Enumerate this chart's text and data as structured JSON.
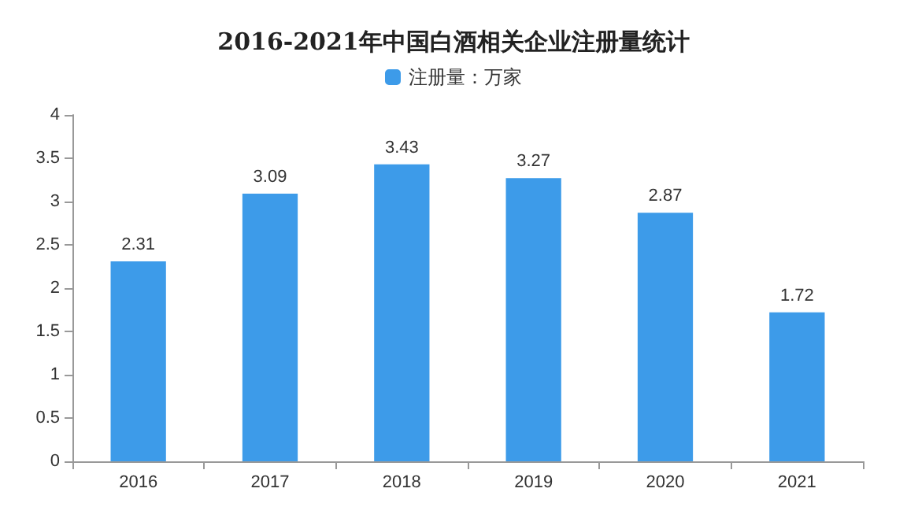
{
  "chart_data": {
    "type": "bar",
    "title": "2016-2021年中国白酒相关企业注册量统计",
    "categories": [
      "2016",
      "2017",
      "2018",
      "2019",
      "2020",
      "2021"
    ],
    "series": [
      {
        "name": "注册量：万家",
        "color": "#3d9be9",
        "values": [
          2.31,
          3.09,
          3.43,
          3.27,
          2.87,
          1.72
        ]
      }
    ],
    "ylim": [
      0,
      4
    ],
    "yticks": [
      0,
      0.5,
      1,
      1.5,
      2,
      2.5,
      3,
      3.5,
      4
    ],
    "data_labels": true,
    "legend": "top",
    "grid": false
  }
}
